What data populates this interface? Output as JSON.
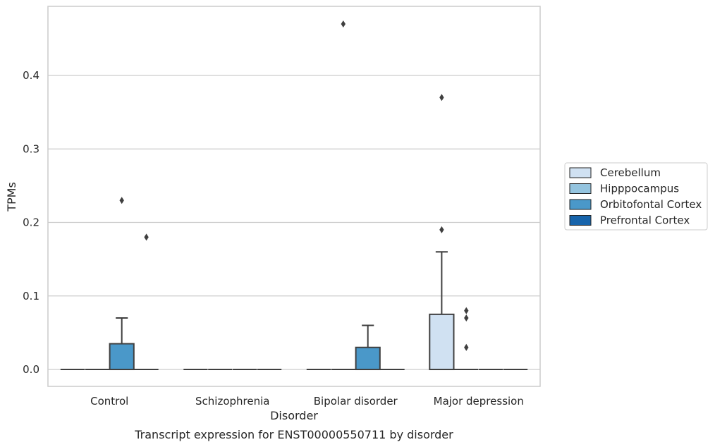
{
  "chart_data": {
    "type": "box",
    "title": "",
    "caption": "Transcript expression for ENST00000550711 by disorder",
    "xlabel": "Disorder",
    "ylabel": "TPMs",
    "ylim": [
      -0.023,
      0.494
    ],
    "yticks": [
      0.0,
      0.1,
      0.2,
      0.3,
      0.4
    ],
    "ytick_labels": [
      "0.0",
      "0.1",
      "0.2",
      "0.3",
      "0.4"
    ],
    "grid": "horizontal",
    "legend_position": "right",
    "categories": [
      "Control",
      "Schizophrenia",
      "Bipolar disorder",
      "Major depression"
    ],
    "series": [
      {
        "name": "Cerebellum",
        "color": "#d0e1f2",
        "boxes": [
          {
            "category": "Control",
            "q1": 0,
            "median": 0,
            "q3": 0,
            "whisker_low": 0,
            "whisker_high": 0,
            "outliers": []
          },
          {
            "category": "Schizophrenia",
            "q1": 0,
            "median": 0,
            "q3": 0,
            "whisker_low": 0,
            "whisker_high": 0,
            "outliers": []
          },
          {
            "category": "Bipolar disorder",
            "q1": 0,
            "median": 0,
            "q3": 0,
            "whisker_low": 0,
            "whisker_high": 0,
            "outliers": []
          },
          {
            "category": "Major depression",
            "q1": 0,
            "median": 0,
            "q3": 0.075,
            "whisker_low": 0,
            "whisker_high": 0.16,
            "outliers": [
              0.19,
              0.37
            ]
          }
        ]
      },
      {
        "name": "Hipppocampus",
        "color": "#94c4df",
        "boxes": [
          {
            "category": "Control",
            "q1": 0,
            "median": 0,
            "q3": 0,
            "whisker_low": 0,
            "whisker_high": 0,
            "outliers": []
          },
          {
            "category": "Schizophrenia",
            "q1": 0,
            "median": 0,
            "q3": 0,
            "whisker_low": 0,
            "whisker_high": 0,
            "outliers": []
          },
          {
            "category": "Bipolar disorder",
            "q1": 0,
            "median": 0,
            "q3": 0,
            "whisker_low": 0,
            "whisker_high": 0,
            "outliers": [
              0.47
            ]
          },
          {
            "category": "Major depression",
            "q1": 0,
            "median": 0,
            "q3": 0,
            "whisker_low": 0,
            "whisker_high": 0,
            "outliers": [
              0.03,
              0.07,
              0.08
            ]
          }
        ]
      },
      {
        "name": "Orbitofontal Cortex",
        "color": "#4a98c9",
        "boxes": [
          {
            "category": "Control",
            "q1": 0,
            "median": 0,
            "q3": 0.035,
            "whisker_low": 0,
            "whisker_high": 0.07,
            "outliers": [
              0.23
            ]
          },
          {
            "category": "Schizophrenia",
            "q1": 0,
            "median": 0,
            "q3": 0,
            "whisker_low": 0,
            "whisker_high": 0,
            "outliers": []
          },
          {
            "category": "Bipolar disorder",
            "q1": 0,
            "median": 0,
            "q3": 0.03,
            "whisker_low": 0,
            "whisker_high": 0.06,
            "outliers": []
          },
          {
            "category": "Major depression",
            "q1": 0,
            "median": 0,
            "q3": 0,
            "whisker_low": 0,
            "whisker_high": 0,
            "outliers": []
          }
        ]
      },
      {
        "name": "Prefrontal Cortex",
        "color": "#1764ab",
        "boxes": [
          {
            "category": "Control",
            "q1": 0,
            "median": 0,
            "q3": 0,
            "whisker_low": 0,
            "whisker_high": 0,
            "outliers": [
              0.18
            ]
          },
          {
            "category": "Schizophrenia",
            "q1": 0,
            "median": 0,
            "q3": 0,
            "whisker_low": 0,
            "whisker_high": 0,
            "outliers": []
          },
          {
            "category": "Bipolar disorder",
            "q1": 0,
            "median": 0,
            "q3": 0,
            "whisker_low": 0,
            "whisker_high": 0,
            "outliers": []
          },
          {
            "category": "Major depression",
            "q1": 0,
            "median": 0,
            "q3": 0,
            "whisker_low": 0,
            "whisker_high": 0,
            "outliers": []
          }
        ]
      }
    ]
  }
}
